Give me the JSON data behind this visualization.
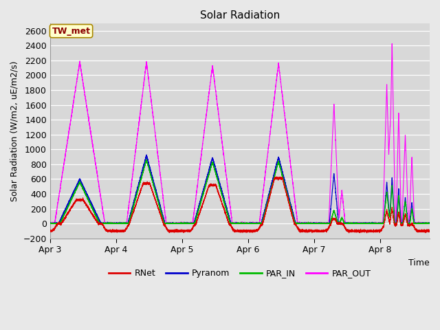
{
  "title": "Solar Radiation",
  "ylabel": "Solar Radiation (W/m2, uE/m2/s)",
  "xlabel": "Time",
  "ylim": [
    -200,
    2700
  ],
  "yticks": [
    -200,
    0,
    200,
    400,
    600,
    800,
    1000,
    1200,
    1400,
    1600,
    1800,
    2000,
    2200,
    2400,
    2600
  ],
  "colors": {
    "RNet": "#dd0000",
    "Pyranom": "#0000cc",
    "PAR_IN": "#00bb00",
    "PAR_OUT": "#ff00ff"
  },
  "bg_color": "#e8e8e8",
  "plot_bg_color": "#d8d8d8",
  "annotation_text": "TW_met",
  "annotation_bg": "#ffffcc",
  "annotation_border": "#aa8800",
  "days": [
    "Apr 3",
    "Apr 4",
    "Apr 5",
    "Apr 6",
    "Apr 7",
    "Apr 8"
  ],
  "title_fontsize": 11,
  "label_fontsize": 9,
  "tick_fontsize": 9
}
